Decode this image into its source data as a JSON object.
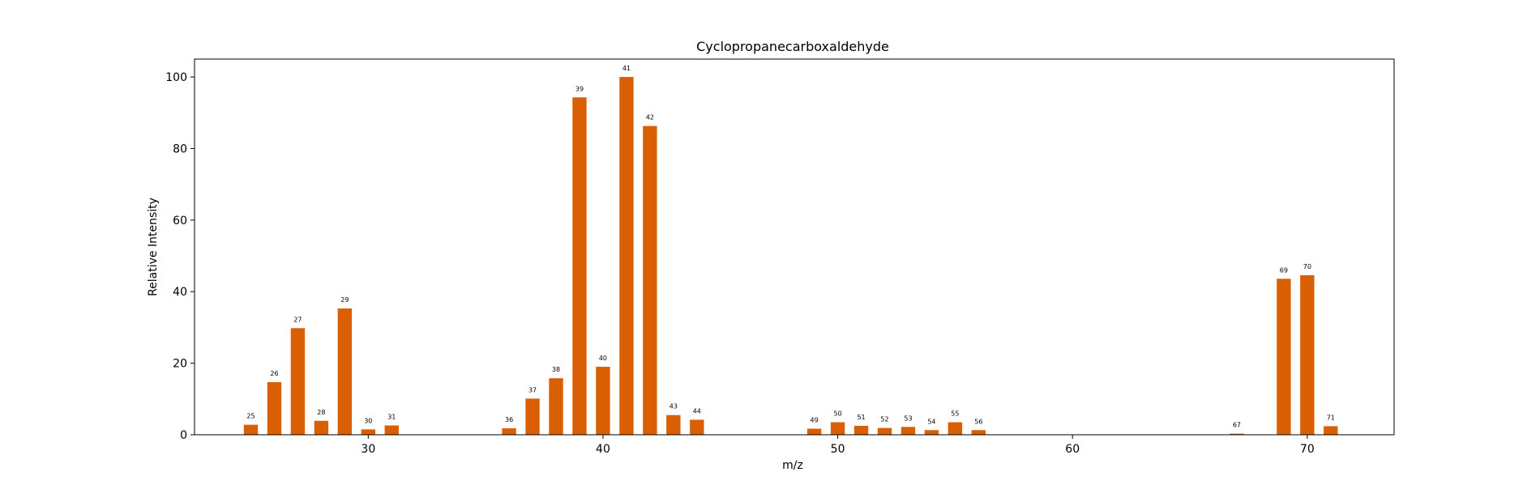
{
  "chart_data": {
    "type": "bar",
    "title": "Cyclopropanecarboxaldehyde",
    "xlabel": "m/z",
    "ylabel": "Relative Intensity",
    "xlim": [
      22.6,
      73.7
    ],
    "ylim": [
      0,
      105
    ],
    "xticks": [
      30,
      40,
      50,
      60,
      70
    ],
    "yticks": [
      0,
      20,
      40,
      60,
      80,
      100
    ],
    "bar_color": "#d95f02",
    "grid": false,
    "peaks": [
      {
        "mz": 25,
        "intensity": 2.8
      },
      {
        "mz": 26,
        "intensity": 14.7
      },
      {
        "mz": 27,
        "intensity": 29.8
      },
      {
        "mz": 28,
        "intensity": 3.9
      },
      {
        "mz": 29,
        "intensity": 35.3
      },
      {
        "mz": 30,
        "intensity": 1.5
      },
      {
        "mz": 31,
        "intensity": 2.6
      },
      {
        "mz": 36,
        "intensity": 1.8
      },
      {
        "mz": 37,
        "intensity": 10.1
      },
      {
        "mz": 38,
        "intensity": 15.8
      },
      {
        "mz": 39,
        "intensity": 94.3
      },
      {
        "mz": 40,
        "intensity": 19.0
      },
      {
        "mz": 41,
        "intensity": 100.0
      },
      {
        "mz": 42,
        "intensity": 86.3
      },
      {
        "mz": 43,
        "intensity": 5.5
      },
      {
        "mz": 44,
        "intensity": 4.2
      },
      {
        "mz": 49,
        "intensity": 1.7
      },
      {
        "mz": 50,
        "intensity": 3.5
      },
      {
        "mz": 51,
        "intensity": 2.5
      },
      {
        "mz": 52,
        "intensity": 1.9
      },
      {
        "mz": 53,
        "intensity": 2.2
      },
      {
        "mz": 54,
        "intensity": 1.3
      },
      {
        "mz": 55,
        "intensity": 3.5
      },
      {
        "mz": 56,
        "intensity": 1.3
      },
      {
        "mz": 67,
        "intensity": 0.3
      },
      {
        "mz": 69,
        "intensity": 43.6
      },
      {
        "mz": 70,
        "intensity": 44.6
      },
      {
        "mz": 71,
        "intensity": 2.4
      }
    ]
  }
}
